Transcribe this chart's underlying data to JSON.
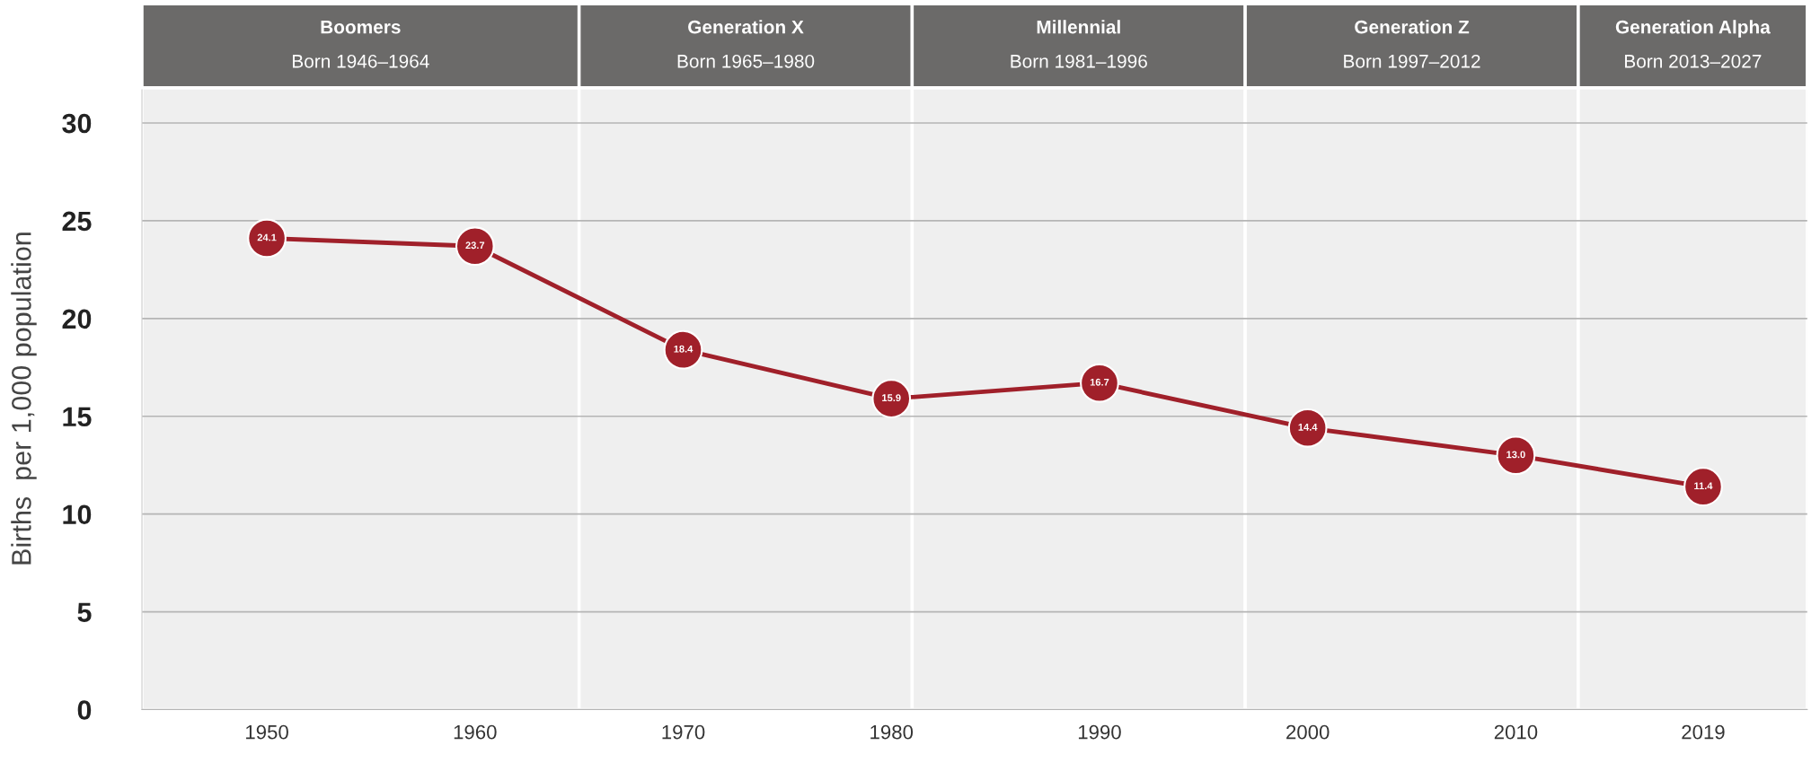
{
  "chart_data": {
    "type": "line",
    "ylabel": "Births  per 1,000 population",
    "x": [
      1950,
      1960,
      1970,
      1980,
      1990,
      2000,
      2010,
      2019
    ],
    "series": [
      {
        "color": "#a0202a",
        "values": [
          24.1,
          23.7,
          18.4,
          15.9,
          16.7,
          14.4,
          13.0,
          11.4
        ]
      }
    ],
    "value_labels": [
      "24.1",
      "23.7",
      "18.4",
      "15.9",
      "16.7",
      "14.4",
      "13.0",
      "11.4"
    ],
    "marker": "circle",
    "line_style": "solid",
    "xlim": [
      1944,
      2024
    ],
    "xticks": [
      1950,
      1960,
      1970,
      1980,
      1990,
      2000,
      2010,
      2019
    ],
    "ylim": [
      0,
      31.8
    ],
    "yticks": [
      0,
      5,
      10,
      15,
      20,
      25,
      30
    ],
    "grid": "y",
    "bands": [
      {
        "axis": "x",
        "from": 1944,
        "to": 1965,
        "label": "Boomers\nBorn 1946–1964",
        "color": "#efefef"
      },
      {
        "axis": "x",
        "from": 1965,
        "to": 1981,
        "label": "Generation X\nBorn 1965–1980",
        "color": "#efefef"
      },
      {
        "axis": "x",
        "from": 1981,
        "to": 1997,
        "label": "Millennial\nBorn 1981–1996",
        "color": "#efefef"
      },
      {
        "axis": "x",
        "from": 1997,
        "to": 2013,
        "label": "Generation Z\nBorn 1997–2012",
        "color": "#efefef"
      },
      {
        "axis": "x",
        "from": 2013,
        "to": 2024,
        "label": "Generation Alpha\nBorn 2013–2027",
        "color": "#efefef"
      }
    ]
  }
}
